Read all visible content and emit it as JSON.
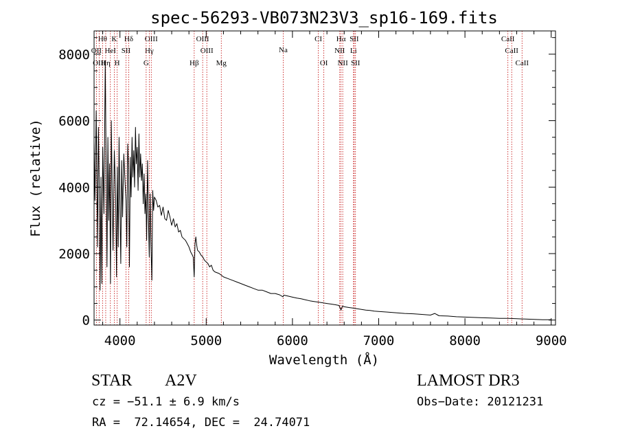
{
  "chart_data": {
    "type": "line",
    "title": "spec-56293-VB073N23V3_sp16-169.fits",
    "xlabel": "Wavelength (Å)",
    "ylabel": "Flux (relative)",
    "xlim": [
      3700,
      9050
    ],
    "ylim": [
      -150,
      8700
    ],
    "xticks": [
      4000,
      5000,
      6000,
      7000,
      8000,
      9000
    ],
    "xtick_labels": [
      "4000",
      "5000",
      "6000",
      "7000",
      "8000",
      "9000"
    ],
    "yticks": [
      0,
      2000,
      4000,
      6000,
      8000
    ],
    "ytick_labels": [
      "0",
      "2000",
      "4000",
      "6000",
      "8000"
    ],
    "grid": false,
    "series": [
      {
        "name": "flux",
        "color": "#000000",
        "x": [
          3700,
          3710,
          3725,
          3740,
          3750,
          3760,
          3770,
          3780,
          3790,
          3800,
          3815,
          3830,
          3840,
          3850,
          3860,
          3870,
          3880,
          3890,
          3900,
          3910,
          3920,
          3935,
          3950,
          3960,
          3970,
          3980,
          3990,
          4000,
          4010,
          4020,
          4030,
          4045,
          4060,
          4070,
          4080,
          4090,
          4100,
          4110,
          4120,
          4130,
          4140,
          4150,
          4160,
          4170,
          4180,
          4190,
          4200,
          4210,
          4220,
          4230,
          4240,
          4250,
          4260,
          4270,
          4280,
          4290,
          4300,
          4310,
          4320,
          4330,
          4340,
          4350,
          4360,
          4370,
          4380,
          4390,
          4400,
          4420,
          4440,
          4460,
          4480,
          4500,
          4520,
          4540,
          4560,
          4580,
          4600,
          4620,
          4640,
          4660,
          4680,
          4700,
          4720,
          4740,
          4760,
          4780,
          4800,
          4820,
          4840,
          4850,
          4861,
          4870,
          4880,
          4890,
          4900,
          4920,
          4940,
          4960,
          4980,
          5000,
          5020,
          5040,
          5060,
          5080,
          5100,
          5150,
          5200,
          5250,
          5300,
          5350,
          5400,
          5450,
          5500,
          5550,
          5600,
          5650,
          5700,
          5750,
          5800,
          5850,
          5890,
          5900,
          5950,
          6000,
          6050,
          6100,
          6150,
          6200,
          6250,
          6300,
          6350,
          6400,
          6450,
          6500,
          6540,
          6563,
          6580,
          6600,
          6650,
          6700,
          6750,
          6800,
          6850,
          6900,
          6950,
          7000,
          7100,
          7200,
          7300,
          7400,
          7500,
          7600,
          7650,
          7700,
          7800,
          7900,
          8000,
          8100,
          8200,
          8300,
          8400,
          8500,
          8600,
          8700,
          8800,
          8900,
          9000
        ],
        "values": [
          5400,
          3600,
          6300,
          2200,
          5800,
          4100,
          900,
          4300,
          1100,
          5200,
          3200,
          7800,
          4600,
          1600,
          5500,
          3000,
          4700,
          1100,
          6000,
          3900,
          2100,
          5100,
          3700,
          1300,
          4600,
          2200,
          5500,
          3400,
          1700,
          4800,
          3100,
          5000,
          4100,
          3600,
          2200,
          5300,
          4600,
          1600,
          4900,
          3700,
          5500,
          4300,
          5100,
          4000,
          5800,
          4700,
          5200,
          3900,
          5600,
          4300,
          5000,
          4200,
          4700,
          3500,
          4400,
          3200,
          3800,
          2400,
          4800,
          3200,
          1900,
          3800,
          2200,
          1200,
          3900,
          3300,
          3700,
          3600,
          3400,
          3450,
          3150,
          3400,
          3050,
          3000,
          3300,
          3100,
          2850,
          3050,
          2800,
          2900,
          2650,
          2700,
          2500,
          2450,
          2400,
          2300,
          2200,
          2050,
          1950,
          1900,
          1300,
          2300,
          2500,
          2250,
          2100,
          2050,
          1950,
          1900,
          1800,
          1750,
          1700,
          1600,
          1650,
          1500,
          1450,
          1400,
          1300,
          1250,
          1200,
          1150,
          1100,
          1050,
          1000,
          950,
          900,
          900,
          850,
          800,
          800,
          760,
          700,
          750,
          720,
          690,
          660,
          640,
          610,
          580,
          560,
          540,
          520,
          500,
          480,
          460,
          440,
          300,
          420,
          400,
          380,
          360,
          340,
          320,
          300,
          290,
          270,
          260,
          240,
          220,
          200,
          190,
          170,
          150,
          200,
          130,
          120,
          100,
          90,
          80,
          70,
          60,
          50,
          50,
          40,
          30,
          20,
          10,
          10
        ]
      }
    ],
    "line_markers": [
      {
        "label": "Hθ",
        "x": 3798,
        "row": 1
      },
      {
        "label": "K",
        "x": 3934,
        "row": 1
      },
      {
        "label": "Hδ",
        "x": 4102,
        "row": 1
      },
      {
        "label": "OIII",
        "x": 4363,
        "row": 1
      },
      {
        "label": "OIII",
        "x": 4959,
        "row": 1
      },
      {
        "label": "CI",
        "x": 6300,
        "row": 1
      },
      {
        "label": "Hα",
        "x": 6563,
        "row": 1
      },
      {
        "label": "SII",
        "x": 6716,
        "row": 1
      },
      {
        "label": "CaII",
        "x": 8498,
        "row": 1
      },
      {
        "label": "OII",
        "x": 3727,
        "row": 2
      },
      {
        "label": "HeI",
        "x": 3889,
        "row": 2
      },
      {
        "label": "SII",
        "x": 4070,
        "row": 2
      },
      {
        "label": "Hγ",
        "x": 4340,
        "row": 2
      },
      {
        "label": "OIII",
        "x": 5007,
        "row": 2
      },
      {
        "label": "NII",
        "x": 6548,
        "row": 2
      },
      {
        "label": "Li",
        "x": 6708,
        "row": 2
      },
      {
        "label": "CaII",
        "x": 8542,
        "row": 2
      },
      {
        "label": "OIII",
        "x": 3760,
        "row": 3
      },
      {
        "label": "Hη",
        "x": 3835,
        "row": 3
      },
      {
        "label": "H",
        "x": 3968,
        "row": 3
      },
      {
        "label": "G",
        "x": 4304,
        "row": 3
      },
      {
        "label": "Hβ",
        "x": 4861,
        "row": 3
      },
      {
        "label": "Mg",
        "x": 5175,
        "row": 3
      },
      {
        "label": "Na",
        "x": 5893,
        "row": 1.9
      },
      {
        "label": "OI",
        "x": 6364,
        "row": 3
      },
      {
        "label": "NII",
        "x": 6583,
        "row": 3
      },
      {
        "label": "SII",
        "x": 6731,
        "row": 3
      },
      {
        "label": "CaII",
        "x": 8662,
        "row": 3
      }
    ]
  },
  "footer": {
    "object_class": "STAR",
    "subclass": "A2V",
    "survey": "LAMOST DR3",
    "cz": "cz = −51.1 ± 6.9 km/s",
    "obs_date": "Obs−Date: 20121231",
    "coords": "RA =  72.14654, DEC =  24.74071"
  },
  "colors": {
    "marker_line": "#c00000",
    "spectrum": "#000000",
    "axes": "#000000"
  }
}
